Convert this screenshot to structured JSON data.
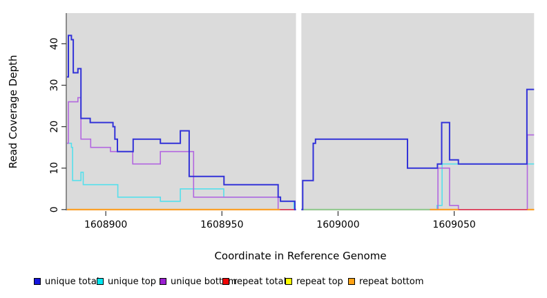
{
  "chart_data": {
    "type": "line",
    "subtype": "step-coverage-plot",
    "title": "",
    "xlabel": "Coordinate in Reference Genome",
    "ylabel": "Read Coverage Depth",
    "xlim": [
      1608883.3,
      1609084.4
    ],
    "ylim": [
      -0.2,
      47.4
    ],
    "xticks": [
      1608900,
      1608950,
      1609000,
      1609050
    ],
    "yticks": [
      0,
      10,
      20,
      30,
      40
    ],
    "grid": false,
    "plot_background": "#DBDBDB",
    "gap_region_x": [
      1608981.9,
      1608984.2
    ],
    "series": [
      {
        "name": "repeat top",
        "color": "#FFFF00",
        "width": 1.6,
        "steps": [
          [
            1608883.3,
            0
          ],
          [
            1609084.4,
            0
          ]
        ]
      },
      {
        "name": "unique top",
        "color": "#55E0EC",
        "width": 1.6,
        "steps": [
          [
            1608883.3,
            16
          ],
          [
            1608885.2,
            15
          ],
          [
            1608885.7,
            7
          ],
          [
            1608889.3,
            9
          ],
          [
            1608890.3,
            6
          ],
          [
            1608905.2,
            3
          ],
          [
            1608923.5,
            2
          ],
          [
            1608932.1,
            5
          ],
          [
            1608950.8,
            3
          ],
          [
            1608975.2,
            2
          ],
          [
            1608981.0,
            0
          ],
          [
            1609042.6,
            1
          ],
          [
            1609044.8,
            11
          ],
          [
            1609084.4,
            11
          ]
        ]
      },
      {
        "name": "unique bottom",
        "color": "#B266E0",
        "width": 1.6,
        "steps": [
          [
            1608883.3,
            16
          ],
          [
            1608883.9,
            26
          ],
          [
            1608888.0,
            27
          ],
          [
            1608889.3,
            17
          ],
          [
            1608893.5,
            15
          ],
          [
            1608902.0,
            14
          ],
          [
            1608911.6,
            11
          ],
          [
            1608923.5,
            14
          ],
          [
            1608937.8,
            3
          ],
          [
            1608974.2,
            0
          ],
          [
            1609043.0,
            10
          ],
          [
            1609048.0,
            1
          ],
          [
            1609051.8,
            0
          ],
          [
            1609081.5,
            18
          ],
          [
            1609084.4,
            18
          ]
        ]
      },
      {
        "name": "repeat total",
        "color": "#DD3355",
        "width": 1.6,
        "steps": [
          [
            1608883.3,
            0
          ],
          [
            1609084.4,
            0
          ]
        ]
      },
      {
        "name": "repeat bottom",
        "color": "#FF9E1B",
        "width": 2,
        "steps": [
          [
            1608883.3,
            0
          ],
          [
            1609084.4,
            0
          ]
        ],
        "visible_segments": [
          [
            1608883.3,
            1608975.0
          ],
          [
            1609039.6,
            1609051.8
          ],
          [
            1609081.5,
            1609084.4
          ]
        ]
      },
      {
        "name": "unique total",
        "color": "#3232D8",
        "width": 2,
        "steps": [
          [
            1608883.3,
            32
          ],
          [
            1608883.9,
            42
          ],
          [
            1608885.2,
            41
          ],
          [
            1608886.0,
            33
          ],
          [
            1608888.0,
            34
          ],
          [
            1608889.3,
            22
          ],
          [
            1608893.3,
            21
          ],
          [
            1608903.1,
            20
          ],
          [
            1608903.9,
            17
          ],
          [
            1608905.0,
            14
          ],
          [
            1608911.8,
            17
          ],
          [
            1608923.5,
            16
          ],
          [
            1608932.1,
            19
          ],
          [
            1608935.9,
            8
          ],
          [
            1608950.9,
            6
          ],
          [
            1608974.2,
            3
          ],
          [
            1608975.2,
            2
          ],
          [
            1608981.4,
            0
          ],
          [
            1608984.8,
            7
          ],
          [
            1608989.3,
            16
          ],
          [
            1608990.3,
            17
          ],
          [
            1609029.9,
            10
          ],
          [
            1609042.8,
            11
          ],
          [
            1609044.6,
            21
          ],
          [
            1609048.0,
            12
          ],
          [
            1609051.8,
            11
          ],
          [
            1609081.3,
            29
          ],
          [
            1609084.4,
            29
          ]
        ]
      }
    ],
    "zero_overlap_segments": [
      {
        "color": "#8FCE8F",
        "x1": 1608984.2,
        "x2": 1609039.6,
        "note": "overlapped zero-depth lines after gap"
      },
      {
        "color": "#FF9E1B",
        "x1": 1608883.3,
        "x2": 1608975.0
      },
      {
        "color": "#FF9E1B",
        "x1": 1609039.6,
        "x2": 1609051.8
      },
      {
        "color": "#FF9E1B",
        "x1": 1609081.5,
        "x2": 1609084.4
      }
    ]
  },
  "legend": {
    "items": [
      {
        "label": "unique total",
        "color": "#1515DD"
      },
      {
        "label": "unique top",
        "color": "#00E6F0"
      },
      {
        "label": "unique bottom",
        "color": "#9B1FD1"
      },
      {
        "label": "repeat total",
        "color": "#F00505"
      },
      {
        "label": "repeat top",
        "color": "#FFFF00"
      },
      {
        "label": "repeat bottom",
        "color": "#FFA216"
      }
    ]
  }
}
